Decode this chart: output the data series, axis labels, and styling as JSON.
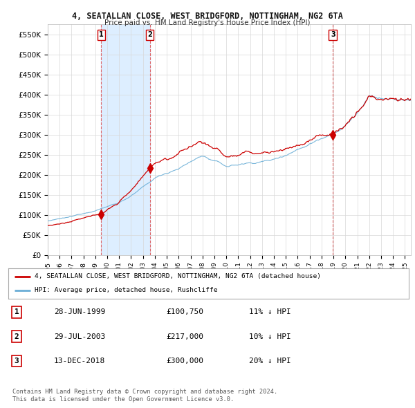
{
  "title": "4, SEATALLAN CLOSE, WEST BRIDGFORD, NOTTINGHAM, NG2 6TA",
  "subtitle": "Price paid vs. HM Land Registry's House Price Index (HPI)",
  "ylim": [
    0,
    575000
  ],
  "yticks": [
    0,
    50000,
    100000,
    150000,
    200000,
    250000,
    300000,
    350000,
    400000,
    450000,
    500000,
    550000
  ],
  "ytick_labels": [
    "£0",
    "£50K",
    "£100K",
    "£150K",
    "£200K",
    "£250K",
    "£300K",
    "£350K",
    "£400K",
    "£450K",
    "£500K",
    "£550K"
  ],
  "sale_color": "#cc0000",
  "hpi_color": "#6aaed6",
  "hpi_fill_color": "#ddeeff",
  "vline_color": "#dd4444",
  "background_color": "#ffffff",
  "grid_color": "#d8d8d8",
  "sales": [
    {
      "date_year": 1999.5,
      "price": 100750,
      "label": "1"
    },
    {
      "date_year": 2003.58,
      "price": 217000,
      "label": "2"
    },
    {
      "date_year": 2018.95,
      "price": 300000,
      "label": "3"
    }
  ],
  "shade_between": [
    1999.5,
    2003.58
  ],
  "legend_line1": "4, SEATALLAN CLOSE, WEST BRIDGFORD, NOTTINGHAM, NG2 6TA (detached house)",
  "legend_line2": "HPI: Average price, detached house, Rushcliffe",
  "table_rows": [
    {
      "num": "1",
      "date": "28-JUN-1999",
      "price": "£100,750",
      "hpi": "11% ↓ HPI"
    },
    {
      "num": "2",
      "date": "29-JUL-2003",
      "price": "£217,000",
      "hpi": "10% ↓ HPI"
    },
    {
      "num": "3",
      "date": "13-DEC-2018",
      "price": "£300,000",
      "hpi": "20% ↓ HPI"
    }
  ],
  "footnote1": "Contains HM Land Registry data © Crown copyright and database right 2024.",
  "footnote2": "This data is licensed under the Open Government Licence v3.0.",
  "xstart": 1995.0,
  "xend": 2025.5
}
